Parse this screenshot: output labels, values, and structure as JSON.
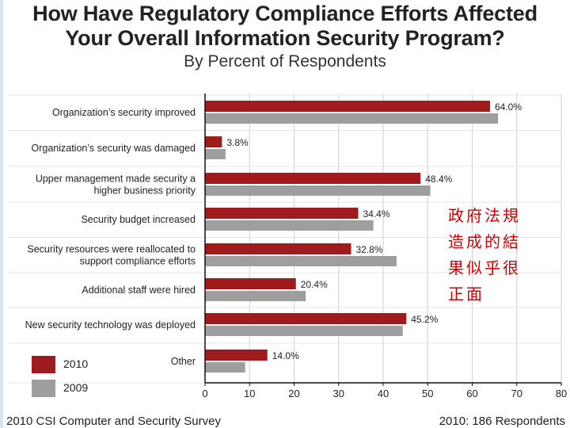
{
  "chart_data": {
    "type": "bar",
    "orientation": "horizontal",
    "title": "How Have Regulatory Compliance Efforts Affected Your Overall Information Security Program?",
    "title_lines": [
      "How Have Regulatory Compliance Efforts Affected",
      "Your Overall Information Security Program?"
    ],
    "subtitle": "By Percent of Respondents",
    "categories": [
      [
        "Organization’s security improved"
      ],
      [
        "Organization’s security was damaged"
      ],
      [
        "Upper management made security a",
        "higher business priority"
      ],
      [
        "Security budget increased"
      ],
      [
        "Security resources were reallocated to",
        "support compliance efforts"
      ],
      [
        "Additional staff were hired"
      ],
      [
        "New security technology was deployed"
      ],
      [
        "Other"
      ]
    ],
    "series": [
      {
        "name": "2010",
        "color": "#a01c1c",
        "values": [
          64.0,
          3.8,
          48.4,
          34.4,
          32.8,
          20.4,
          45.2,
          14.0
        ]
      },
      {
        "name": "2009",
        "color": "#9e9e9e",
        "values": [
          65.8,
          4.6,
          50.6,
          37.8,
          43.0,
          22.6,
          44.4,
          9.0
        ]
      }
    ],
    "data_labels": [
      "64.0%",
      "3.8%",
      "48.4%",
      "34.4%",
      "32.8%",
      "20.4%",
      "45.2%",
      "14.0%"
    ],
    "xlim": [
      0,
      80
    ],
    "xticks": [
      0,
      10,
      20,
      30,
      40,
      50,
      60,
      70,
      80
    ],
    "grid": true,
    "legend": "bottom-left"
  },
  "annotation": {
    "lines": [
      "政府法規",
      "造成的結",
      "果似乎很",
      "正面"
    ]
  },
  "footer": {
    "left": "2010 CSI Computer and Security Survey",
    "right": "2010: 186 Respondents"
  }
}
